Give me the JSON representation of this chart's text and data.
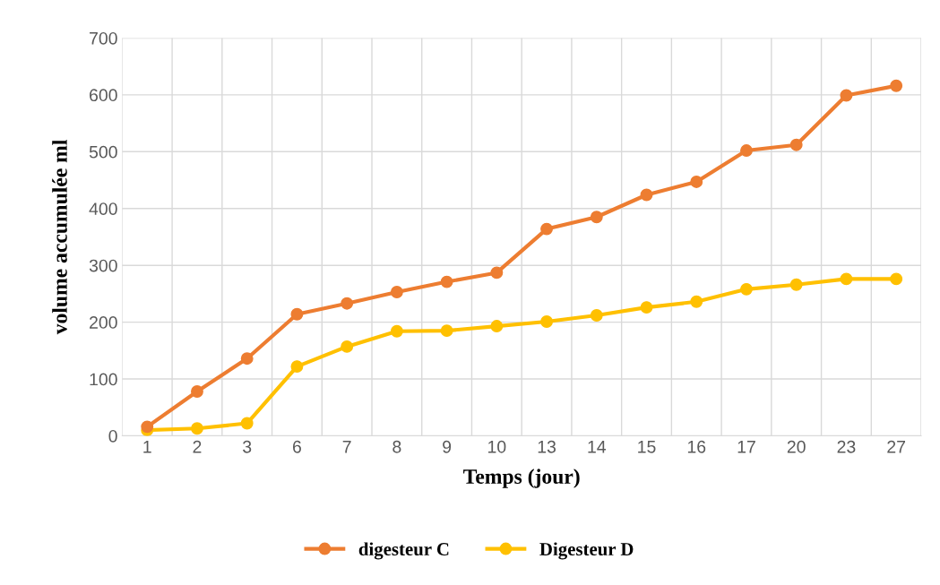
{
  "chart_data": {
    "type": "line",
    "xlabel": "Temps (jour)",
    "ylabel": "volume accumulée ml",
    "categories": [
      "1",
      "2",
      "3",
      "6",
      "7",
      "8",
      "9",
      "10",
      "13",
      "14",
      "15",
      "16",
      "17",
      "20",
      "23",
      "27"
    ],
    "series": [
      {
        "name": "digesteur C",
        "color": "#ed7d31",
        "values": [
          16,
          78,
          136,
          214,
          233,
          253,
          271,
          287,
          364,
          385,
          424,
          447,
          502,
          512,
          599,
          616
        ]
      },
      {
        "name": "Digesteur D",
        "color": "#ffc000",
        "values": [
          10,
          13,
          22,
          122,
          157,
          184,
          185,
          193,
          201,
          212,
          226,
          236,
          258,
          266,
          276,
          276
        ]
      }
    ],
    "ylim": [
      0,
      700
    ],
    "yticks": [
      0,
      100,
      200,
      300,
      400,
      500,
      600,
      700
    ],
    "grid": true,
    "legend": "bottom",
    "marker": "circle",
    "line_style": "solid"
  }
}
